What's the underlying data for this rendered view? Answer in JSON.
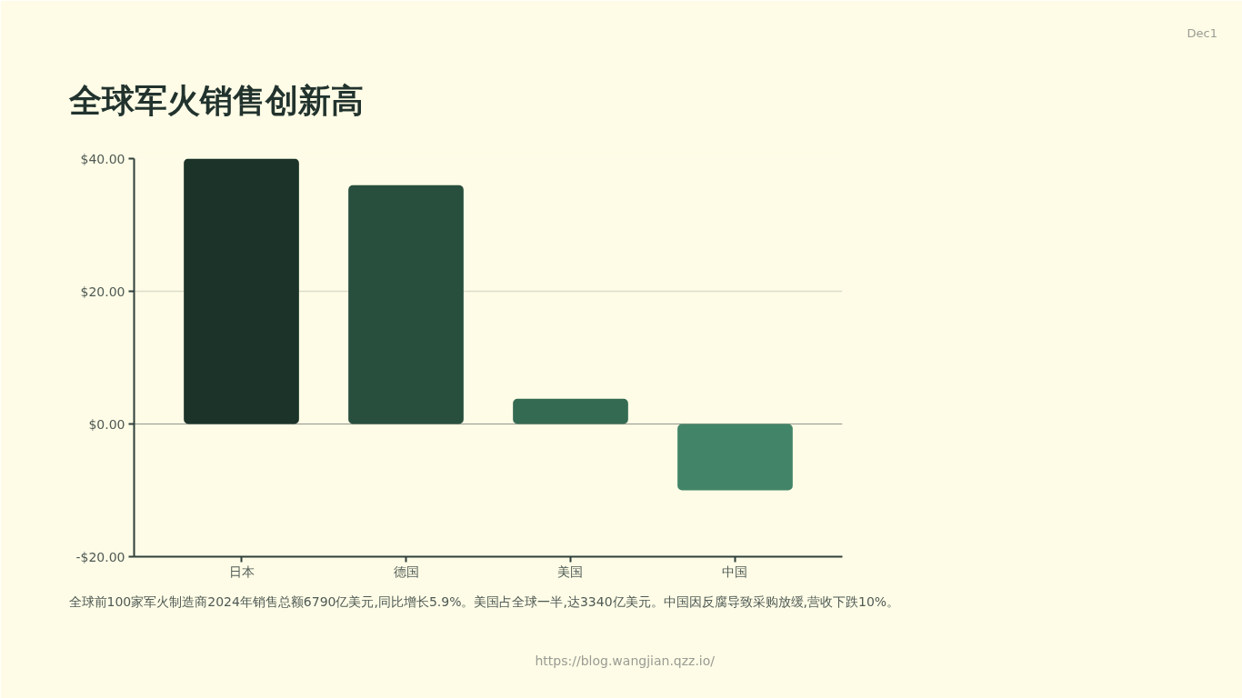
{
  "chart_data": {
    "type": "bar",
    "title": "全球军火销售创新高",
    "categories": [
      "日本",
      "德国",
      "美国",
      "中国"
    ],
    "values": [
      40,
      36,
      3.8,
      -10
    ],
    "colors": [
      "#1b3328",
      "#284f3e",
      "#356a52",
      "#428467"
    ],
    "ylim": [
      -20,
      40
    ],
    "yticks": [
      {
        "value": -20,
        "label": "-$20.00"
      },
      {
        "value": 0,
        "label": "$0.00"
      },
      {
        "value": 20,
        "label": "$20.00"
      },
      {
        "value": 40,
        "label": "$40.00"
      }
    ],
    "grid": "y",
    "ref_lines": [
      {
        "axis": "y",
        "value": 0,
        "color": "#9c9f98"
      }
    ],
    "annotations": [
      "全球前100家军火制造商2024年销售总额6790亿美元,同比增长5.9%。美国占全球一半,达3340亿美元。中国因反腐导致采购放缓,营收下跌10%。",
      "https://blog.wangjian.qzz.io/",
      "Dec1"
    ]
  }
}
